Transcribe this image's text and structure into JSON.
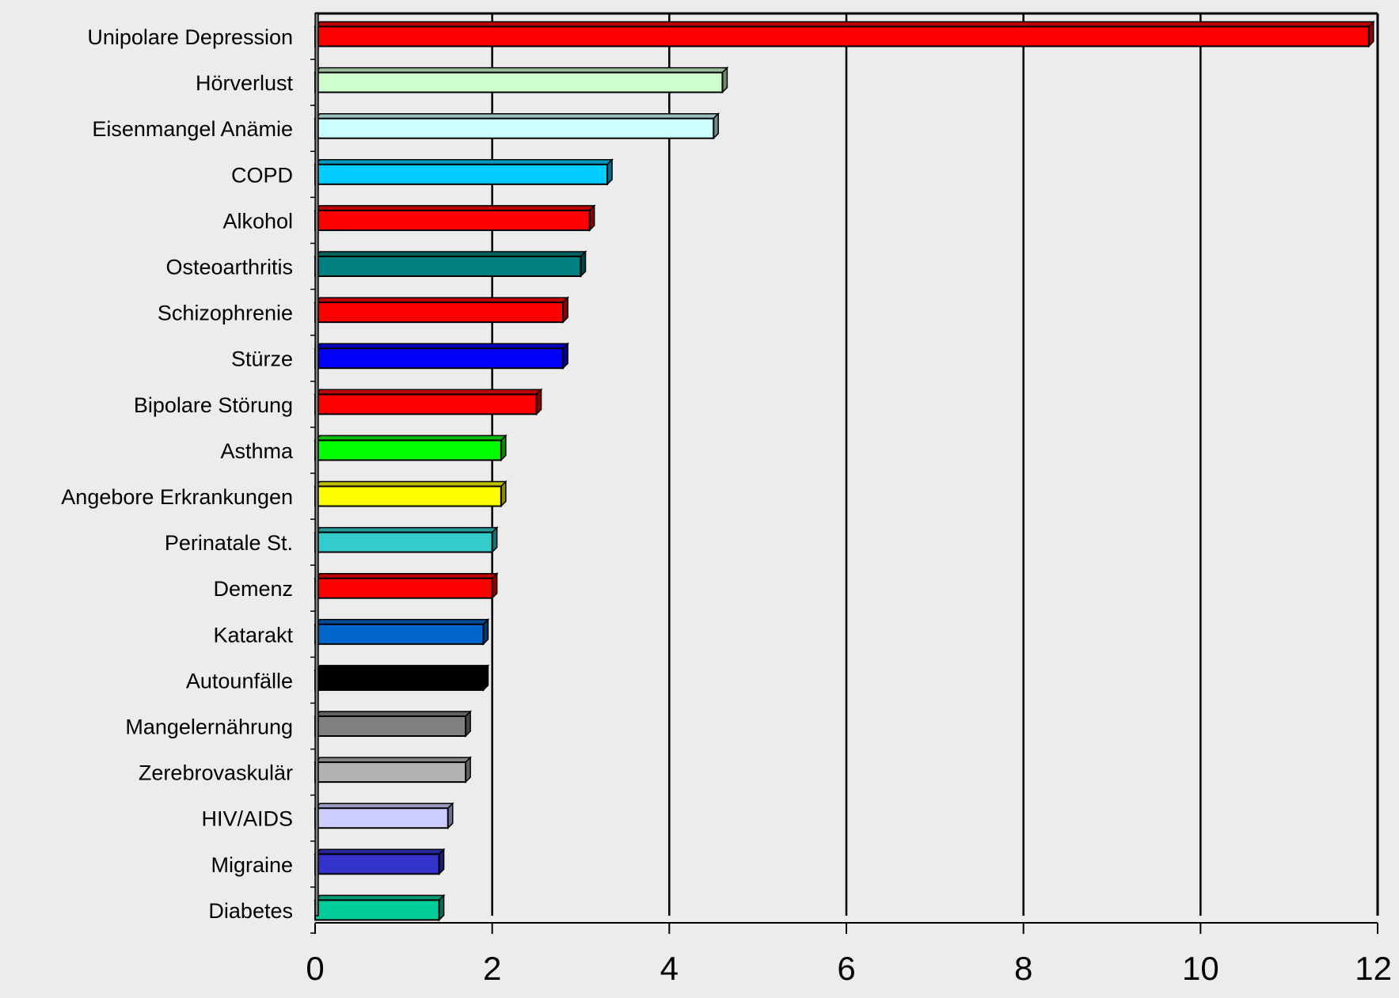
{
  "chart_data": {
    "type": "bar",
    "orientation": "horizontal",
    "categories": [
      "Unipolare Depression",
      "Hörverlust",
      "Eisenmangel Anämie",
      "COPD",
      "Alkohol",
      "Osteoarthritis",
      "Schizophrenie",
      "Stürze",
      "Bipolare Störung",
      "Asthma",
      "Angebore Erkrankungen",
      "Perinatale St.",
      "Demenz",
      "Katarakt",
      "Autounfälle",
      "Mangelernährung",
      "Zerebrovaskulär",
      "HIV/AIDS",
      "Migraine",
      "Diabetes"
    ],
    "values": [
      11.9,
      4.6,
      4.5,
      3.3,
      3.1,
      3.0,
      2.8,
      2.8,
      2.5,
      2.1,
      2.1,
      2.0,
      2.0,
      1.9,
      1.9,
      1.7,
      1.7,
      1.5,
      1.4,
      1.4
    ],
    "colors": [
      "#ff0000",
      "#ccffcc",
      "#ccffff",
      "#00ccff",
      "#ff0000",
      "#008080",
      "#ff0000",
      "#0000ff",
      "#ff0000",
      "#00ff00",
      "#ffff00",
      "#33cccc",
      "#ff0000",
      "#0066cc",
      "#000000",
      "#808080",
      "#b2b2b2",
      "#ccccff",
      "#3333cc",
      "#00cc99"
    ],
    "xlim": [
      0,
      12
    ],
    "xticks": [
      "0",
      "2",
      "4",
      "6",
      "8",
      "10",
      "12"
    ],
    "grid": "vertical",
    "legend": "none"
  }
}
